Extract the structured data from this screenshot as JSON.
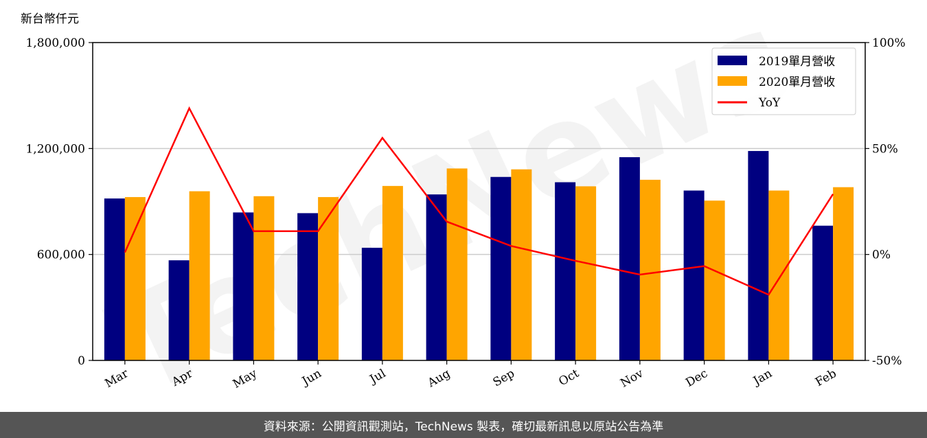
{
  "unit_label": "新台幣仟元",
  "footer": "資料來源：公開資訊觀測站，TechNews 製表，確切最新訊息以原站公告為準",
  "watermark": "TechNews",
  "colors": {
    "series_2019": "#000080",
    "series_2020": "#FFA500",
    "yoy": "#FF0000"
  },
  "chart_data": {
    "type": "bar",
    "categories": [
      "Mar",
      "Apr",
      "May",
      "Jun",
      "Jul",
      "Aug",
      "Sep",
      "Oct",
      "Nov",
      "Dec",
      "Jan",
      "Feb"
    ],
    "series": [
      {
        "name": "2019單月營收",
        "values": [
          917000,
          567000,
          838000,
          834000,
          638000,
          940000,
          1039000,
          1009000,
          1151000,
          962000,
          1186000,
          763000
        ]
      },
      {
        "name": "2020單月營收",
        "values": [
          925000,
          958000,
          930000,
          925000,
          988000,
          1087000,
          1082000,
          986000,
          1023000,
          905000,
          962000,
          981000
        ]
      }
    ],
    "line_series": {
      "name": "YoY",
      "axis": "right",
      "values": [
        0.01,
        0.69,
        0.11,
        0.11,
        0.55,
        0.155,
        0.04,
        -0.03,
        -0.095,
        -0.055,
        -0.19,
        0.285
      ]
    },
    "ylim": [
      0,
      1800000
    ],
    "y_ticks": [
      "0",
      "600,000",
      "1,200,000",
      "1,800,000"
    ],
    "y_tick_values": [
      0,
      600000,
      1200000,
      1800000
    ],
    "y2lim": [
      -0.5,
      1.0
    ],
    "y2_ticks": [
      "-50%",
      "0%",
      "50%",
      "100%"
    ],
    "y2_tick_values": [
      -0.5,
      0,
      0.5,
      1.0
    ],
    "grid": "horizontal",
    "legend": "top-right",
    "xlabel": "",
    "ylabel": "",
    "title": ""
  }
}
